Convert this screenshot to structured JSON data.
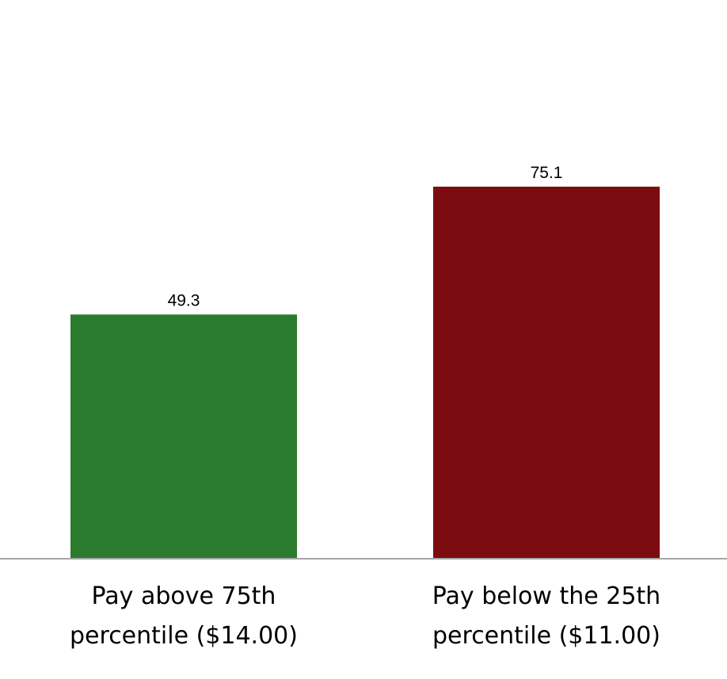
{
  "chart_data": {
    "type": "bar",
    "categories": [
      [
        "Pay above 75th",
        "percentile ($14.00)"
      ],
      [
        "Pay below the 25th",
        "percentile ($11.00)"
      ]
    ],
    "values": [
      49.3,
      75.1
    ],
    "value_labels": [
      "49.3",
      "75.1"
    ],
    "colors": [
      "#2a7b2e",
      "#7c0c0f"
    ],
    "axis_color": "#a6a6a6",
    "title": "",
    "xlabel": "",
    "ylabel": "",
    "ylim": [
      0,
      100
    ],
    "grid": false,
    "legend": "none"
  }
}
